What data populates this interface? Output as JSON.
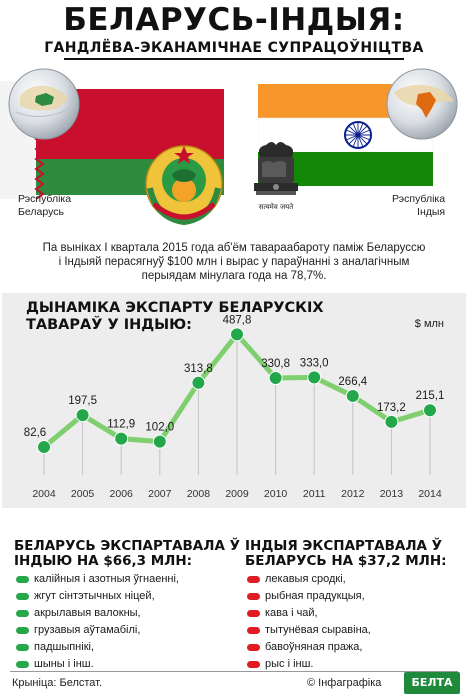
{
  "header": {
    "title": "БЕЛАРУСЬ-ІНДЫЯ:",
    "subtitle": "ГАНДЛЁВА-ЭКАНАМІЧНАЕ СУПРАЦОЎНІЦТВА"
  },
  "countries": {
    "belarus": {
      "line1": "Рэспубліка",
      "line2": "Беларусь"
    },
    "india": {
      "line1": "Рэспубліка",
      "line2": "Індыя",
      "emblem_motto": "सत्यमेव जयते"
    }
  },
  "intro": "Па выніках I квартала 2015 года аб'ём тавараабароту паміж Беларуссю і Індыяй перасягнуў $100 млн і вырас у параўнанні з аналагічным перыядам мінулага года на 78,7%.",
  "chart_data": {
    "type": "line",
    "title_line1": "ДЫНАМІКА ЭКСПАРТУ БЕЛАРУСКІХ",
    "title_line2": "ТАВАРАЎ У ІНДЫЮ:",
    "unit": "$ млн",
    "x": [
      "2004",
      "2005",
      "2006",
      "2007",
      "2008",
      "2009",
      "2010",
      "2011",
      "2012",
      "2013",
      "2014"
    ],
    "values": [
      82.6,
      197.5,
      112.9,
      102.0,
      313.8,
      487.8,
      330.8,
      333.0,
      266.4,
      173.2,
      215.1
    ],
    "value_labels": [
      "82,6",
      "197,5",
      "112,9",
      "102,0",
      "313,8",
      "487,8",
      "330,8",
      "333,0",
      "266,4",
      "173,2",
      "215,1"
    ],
    "ylim": [
      0,
      500
    ],
    "grid": "vertical dropline per year",
    "legend": "none"
  },
  "belarus_export": {
    "title_line1": "БЕЛАРУСЬ ЭКСПАРТАВАЛА Ў",
    "title_line2": "ІНДЫЮ НА $66,3 МЛН:",
    "items": [
      "калійныя і азотныя ўгнаенні,",
      "жгут сінтэтычных ніцей,",
      "акрылавыя валокны,",
      "грузавыя аўтамабілі,",
      "падшыпнікі,",
      "шыны і інш."
    ]
  },
  "india_export": {
    "title_line1": "ІНДЫЯ ЭКСПАРТАВАЛА Ў",
    "title_line2": "БЕЛАРУСЬ НА $37,2 МЛН:",
    "items": [
      "лекавыя сродкі,",
      "рыбная прадукцыя,",
      "кава і чай,",
      "тытунёвая сыравіна,",
      "бавоўняная пража,",
      "рыс і інш."
    ]
  },
  "footer": {
    "source": "Крыніца: Белстат.",
    "credit": "© Інфаграфіка",
    "logo": "БЕЛТА"
  },
  "colors": {
    "belarus_red": "#c8102e",
    "belarus_green": "#2e8a3e",
    "india_saffron": "#f7962b",
    "india_green": "#138808",
    "chakra": "#0a1f8f",
    "line_green": "#7fcf6f",
    "marker_green": "#22a84a",
    "panel_gray": "#ededed",
    "bullet_red": "#e11b22"
  }
}
